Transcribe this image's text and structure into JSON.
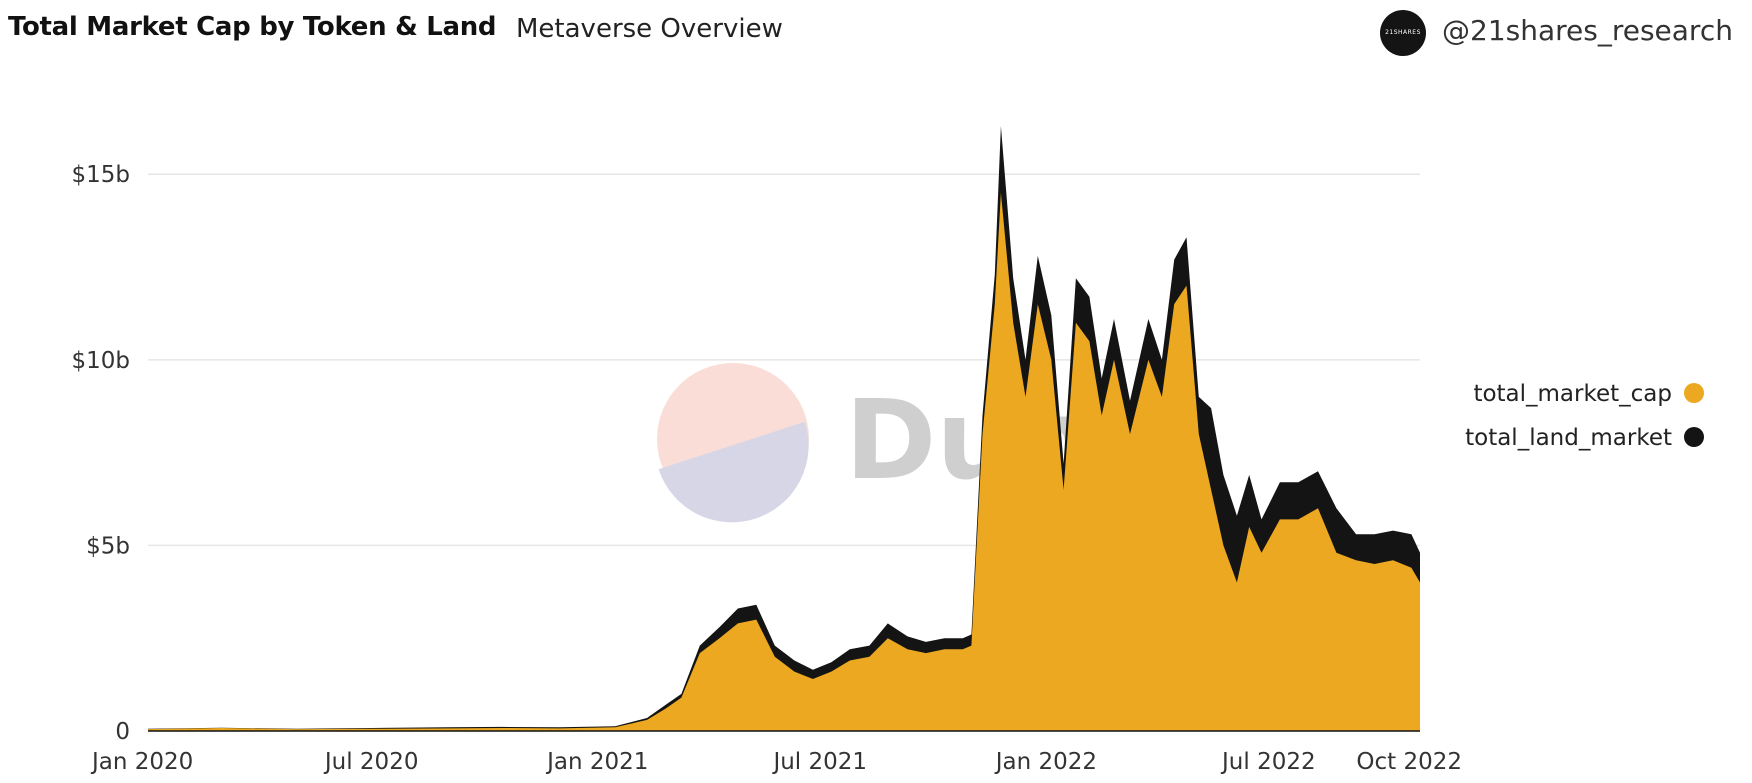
{
  "header": {
    "title": "Total Market Cap by Token & Land",
    "subtitle": "Metaverse Overview",
    "avatar_text": "21SHARES",
    "handle": "@21shares_research"
  },
  "watermark": "Dune",
  "colors": {
    "token": "#EBA820",
    "land": "#141414",
    "grid": "#e6e6e6",
    "watermark_top": "#f9ddd6",
    "watermark_bottom": "#d6d6e6"
  },
  "chart_data": {
    "type": "area",
    "stacked": true,
    "title": "Total Market Cap by Token & Land",
    "y_ticks": [
      {
        "value": 0,
        "label": "0"
      },
      {
        "value": 5,
        "label": "$5b"
      },
      {
        "value": 10,
        "label": "$10b"
      },
      {
        "value": 15,
        "label": "$15b"
      }
    ],
    "x_ticks": [
      {
        "date": "2020-01-01",
        "label": "Jan 2020"
      },
      {
        "date": "2020-07-01",
        "label": "Jul 2020"
      },
      {
        "date": "2021-01-01",
        "label": "Jan 2021"
      },
      {
        "date": "2021-07-01",
        "label": "Jul 2021"
      },
      {
        "date": "2022-01-01",
        "label": "Jan 2022"
      },
      {
        "date": "2022-07-01",
        "label": "Jul 2022"
      },
      {
        "date": "2022-10-01",
        "label": "Oct 2022"
      }
    ],
    "x_range": [
      "2020-01-01",
      "2022-11-01"
    ],
    "y_range_billion_usd": [
      0,
      17
    ],
    "grid": true,
    "legend_position": "right",
    "series": [
      {
        "name": "total_market_cap",
        "color": "#EBA820"
      },
      {
        "name": "total_land_market",
        "label_shown": "total_land_market",
        "color": "#141414"
      }
    ],
    "x": [
      "2020-01-01",
      "2020-03-01",
      "2020-05-01",
      "2020-07-01",
      "2020-09-01",
      "2020-10-15",
      "2020-12-01",
      "2021-01-15",
      "2021-02-10",
      "2021-02-25",
      "2021-03-10",
      "2021-03-25",
      "2021-04-10",
      "2021-04-25",
      "2021-05-10",
      "2021-05-25",
      "2021-06-10",
      "2021-06-25",
      "2021-07-10",
      "2021-07-25",
      "2021-08-10",
      "2021-08-25",
      "2021-09-10",
      "2021-09-25",
      "2021-10-10",
      "2021-10-25",
      "2021-11-01",
      "2021-11-10",
      "2021-11-20",
      "2021-11-25",
      "2021-12-05",
      "2021-12-15",
      "2021-12-25",
      "2022-01-05",
      "2022-01-15",
      "2022-01-25",
      "2022-02-05",
      "2022-02-15",
      "2022-02-25",
      "2022-03-10",
      "2022-03-25",
      "2022-04-05",
      "2022-04-15",
      "2022-04-25",
      "2022-05-05",
      "2022-05-15",
      "2022-05-25",
      "2022-06-05",
      "2022-06-15",
      "2022-06-25",
      "2022-07-10",
      "2022-07-25",
      "2022-08-10",
      "2022-08-25",
      "2022-09-10",
      "2022-09-25",
      "2022-10-10",
      "2022-10-25",
      "2022-11-01"
    ],
    "token_values": [
      0.05,
      0.08,
      0.05,
      0.06,
      0.07,
      0.08,
      0.07,
      0.1,
      0.3,
      0.6,
      0.9,
      2.1,
      2.5,
      2.9,
      3.0,
      2.0,
      1.6,
      1.4,
      1.6,
      1.9,
      2.0,
      2.5,
      2.2,
      2.1,
      2.2,
      2.2,
      2.3,
      8.0,
      11.5,
      14.5,
      11.0,
      9.0,
      11.5,
      10.0,
      6.5,
      11.0,
      10.5,
      8.5,
      10.0,
      8.0,
      10.0,
      9.0,
      11.5,
      12.0,
      8.0,
      6.5,
      5.0,
      4.0,
      5.5,
      4.8,
      5.7,
      5.7,
      6.0,
      4.8,
      4.6,
      4.5,
      4.6,
      4.4,
      4.0
    ],
    "land_values": [
      0.01,
      0.01,
      0.01,
      0.02,
      0.03,
      0.03,
      0.03,
      0.03,
      0.05,
      0.1,
      0.1,
      0.2,
      0.3,
      0.4,
      0.4,
      0.3,
      0.3,
      0.25,
      0.25,
      0.3,
      0.3,
      0.4,
      0.35,
      0.3,
      0.3,
      0.3,
      0.3,
      0.5,
      0.8,
      1.8,
      1.2,
      1.0,
      1.3,
      1.2,
      0.7,
      1.2,
      1.2,
      1.0,
      1.1,
      0.9,
      1.1,
      1.0,
      1.2,
      1.3,
      1.0,
      2.2,
      1.9,
      1.8,
      1.4,
      0.9,
      1.0,
      1.0,
      1.0,
      1.2,
      0.7,
      0.8,
      0.8,
      0.9,
      0.8
    ]
  }
}
